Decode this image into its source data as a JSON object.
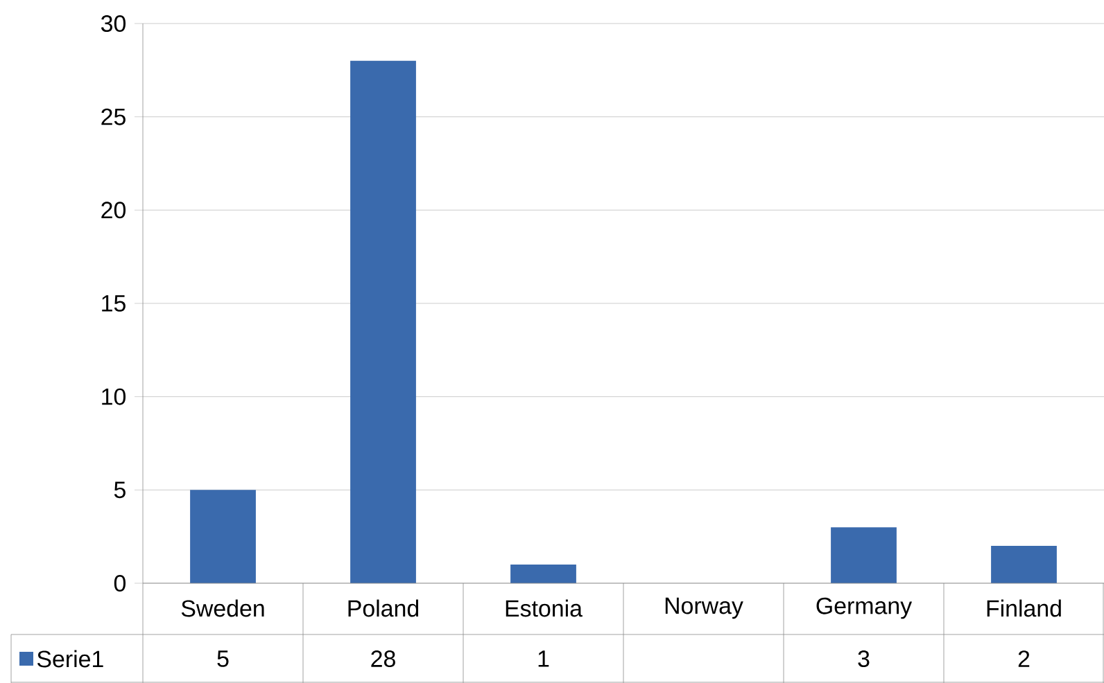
{
  "chart_data": {
    "type": "bar",
    "categories": [
      "Sweden",
      "Poland",
      "Estonia",
      "Norway",
      "Germany",
      "Finland"
    ],
    "series": [
      {
        "name": "Serie1",
        "color": "#3a6aad",
        "values": [
          5,
          28,
          1,
          null,
          3,
          2
        ]
      }
    ],
    "ylim": [
      0,
      30
    ],
    "yticks": [
      0,
      5,
      10,
      15,
      20,
      25,
      30
    ],
    "grid": "y",
    "legend": "bottom",
    "data_labels": true
  }
}
